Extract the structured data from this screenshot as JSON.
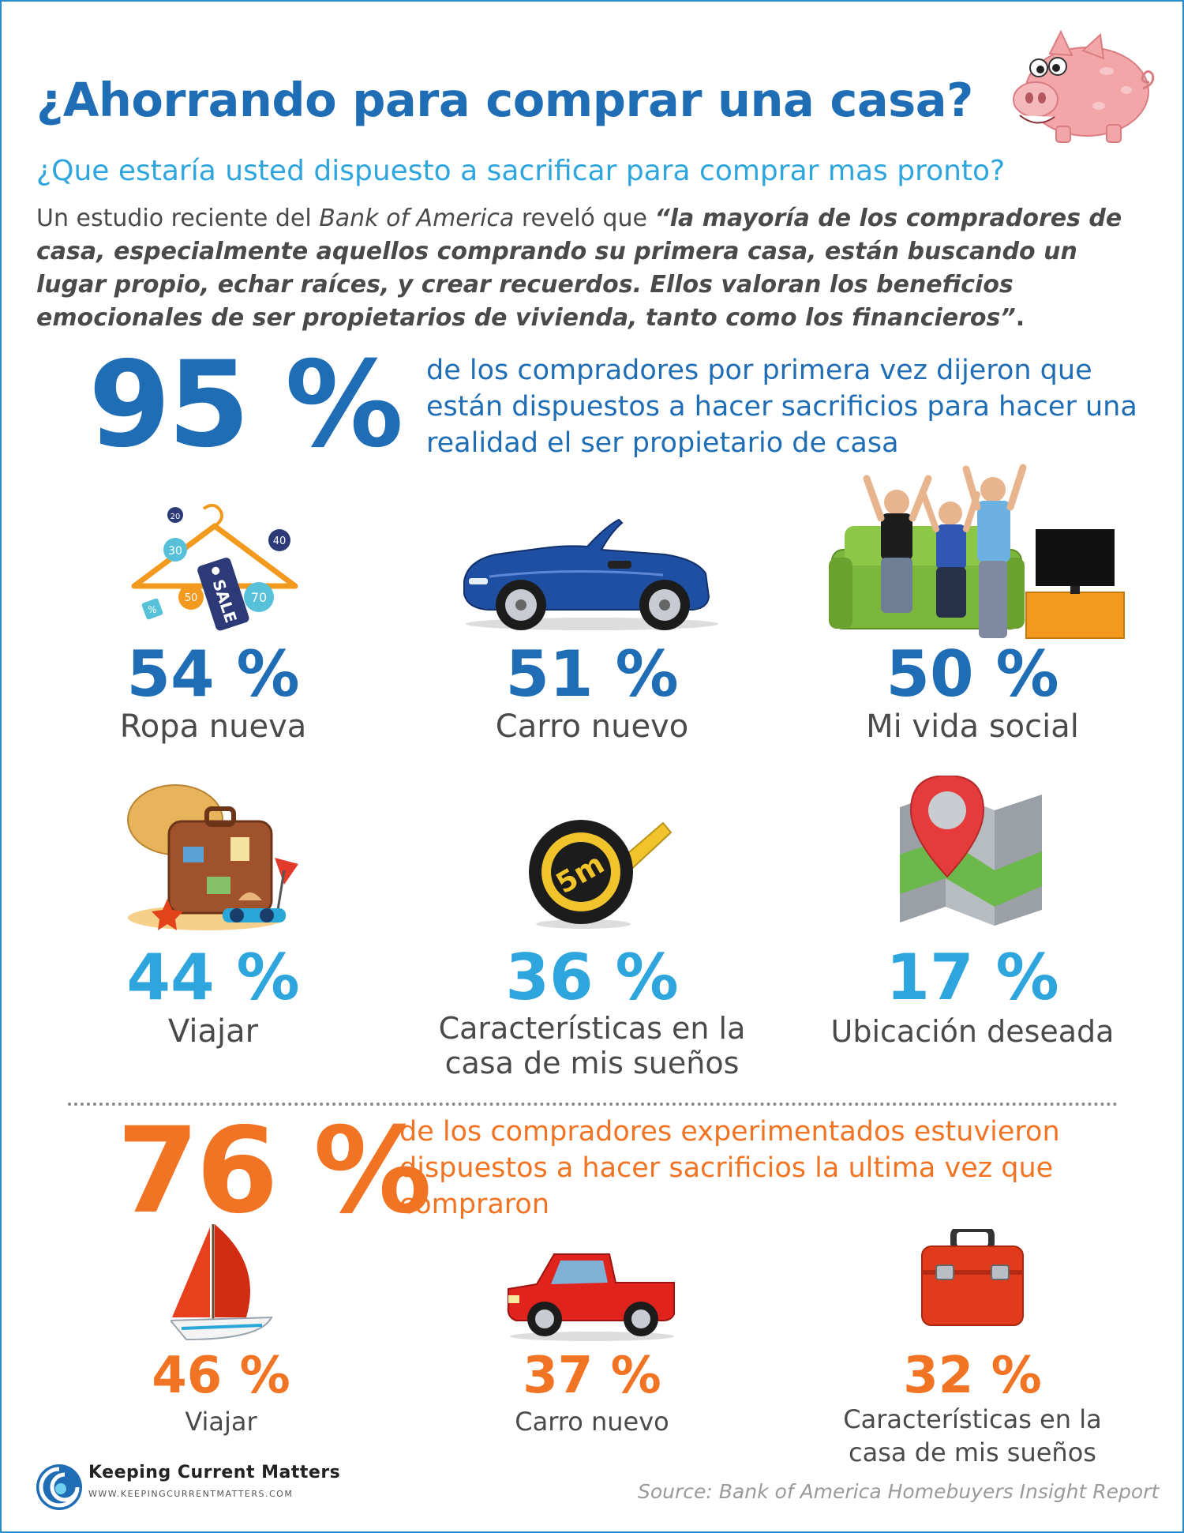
{
  "header": {
    "title": "¿Ahorrando para comprar una casa?",
    "subtitle": "¿Que estaría usted dispuesto a sacrificar para comprar mas pronto?"
  },
  "intro": {
    "lead": "Un estudio reciente del ",
    "source_name": "Bank of America",
    "reveal": " reveló que ",
    "quote_part1": "“la mayoría de los compradores de casa, especialmente aquellos comprando su primera casa, están buscando un lugar propio, echar raíces, y crear recuerdos. ",
    "quote_part2": "Ellos valoran los beneficios emocionales de ser propietarios de vivienda, tanto como los financieros”",
    "end": "."
  },
  "first_time": {
    "percent": "95 %",
    "description": "de los compradores por primera vez dijeron que están dispuestos a hacer sacrificios para hacer una realidad el ser propietario de casa",
    "items": [
      {
        "percent": "54 %",
        "label": "Ropa nueva",
        "icon": "clothes-sale-icon"
      },
      {
        "percent": "51 %",
        "label": "Carro nuevo",
        "icon": "convertible-car-icon"
      },
      {
        "percent": "50 %",
        "label": "Mi vida social",
        "icon": "friends-tv-icon"
      },
      {
        "percent": "44 %",
        "label": "Viajar",
        "icon": "travel-suitcase-icon"
      },
      {
        "percent": "36 %",
        "label": "Características en la casa de mis sueños",
        "icon": "tape-measure-icon"
      },
      {
        "percent": "17 %",
        "label": "Ubicación deseada",
        "icon": "map-pin-icon"
      }
    ],
    "tag_texts": {
      "t20": "20",
      "t30": "30",
      "t40": "40",
      "t50": "50",
      "t70": "70",
      "sale": "SALE",
      "pct": "%",
      "tape": "5m"
    }
  },
  "experienced": {
    "percent": "76 %",
    "description": "de los compradores experimentados estuvieron dispuestos a hacer sacrificios la ultima vez que compraron",
    "items": [
      {
        "percent": "46 %",
        "label": "Viajar",
        "icon": "sailboat-icon"
      },
      {
        "percent": "37 %",
        "label": "Carro nuevo",
        "icon": "pickup-truck-icon"
      },
      {
        "percent": "32 %",
        "label": "Características en la casa de mis sueños",
        "icon": "toolbox-icon"
      }
    ]
  },
  "footer": {
    "brand": "Keeping Current Matters",
    "url": "WWW.KEEPINGCURRENTMATTERS.COM",
    "source": "Source: Bank of America Homebuyers Insight Report"
  },
  "colors": {
    "primary_blue": "#1f6db5",
    "light_blue": "#2ea6dd",
    "orange": "#f07423",
    "text_gray": "#4a4a4a"
  }
}
